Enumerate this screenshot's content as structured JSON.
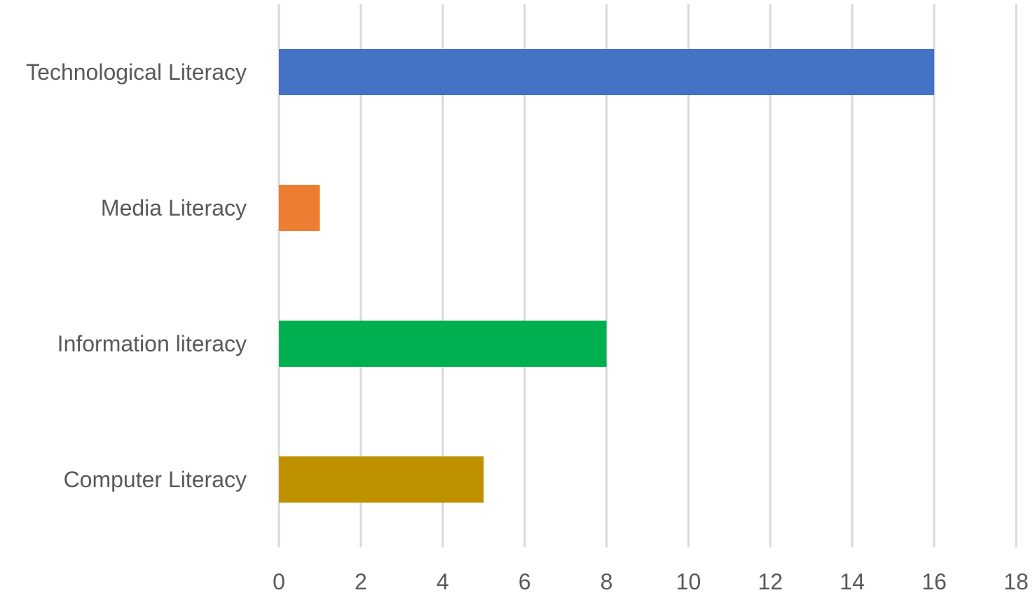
{
  "chart_data": {
    "type": "bar",
    "orientation": "horizontal",
    "title": "",
    "xlabel": "",
    "ylabel": "",
    "categories": [
      "Technological Literacy",
      "Media Literacy",
      "Information literacy",
      "Computer Literacy"
    ],
    "values": [
      16,
      1,
      8,
      5
    ],
    "colors": [
      "#4472c4",
      "#ed7d31",
      "#00b050",
      "#bf9000"
    ],
    "xlim": [
      0,
      18
    ],
    "xticks": [
      "0",
      "2",
      "4",
      "6",
      "8",
      "10",
      "12",
      "14",
      "16",
      "18"
    ],
    "grid": "vertical",
    "legend": "none"
  }
}
